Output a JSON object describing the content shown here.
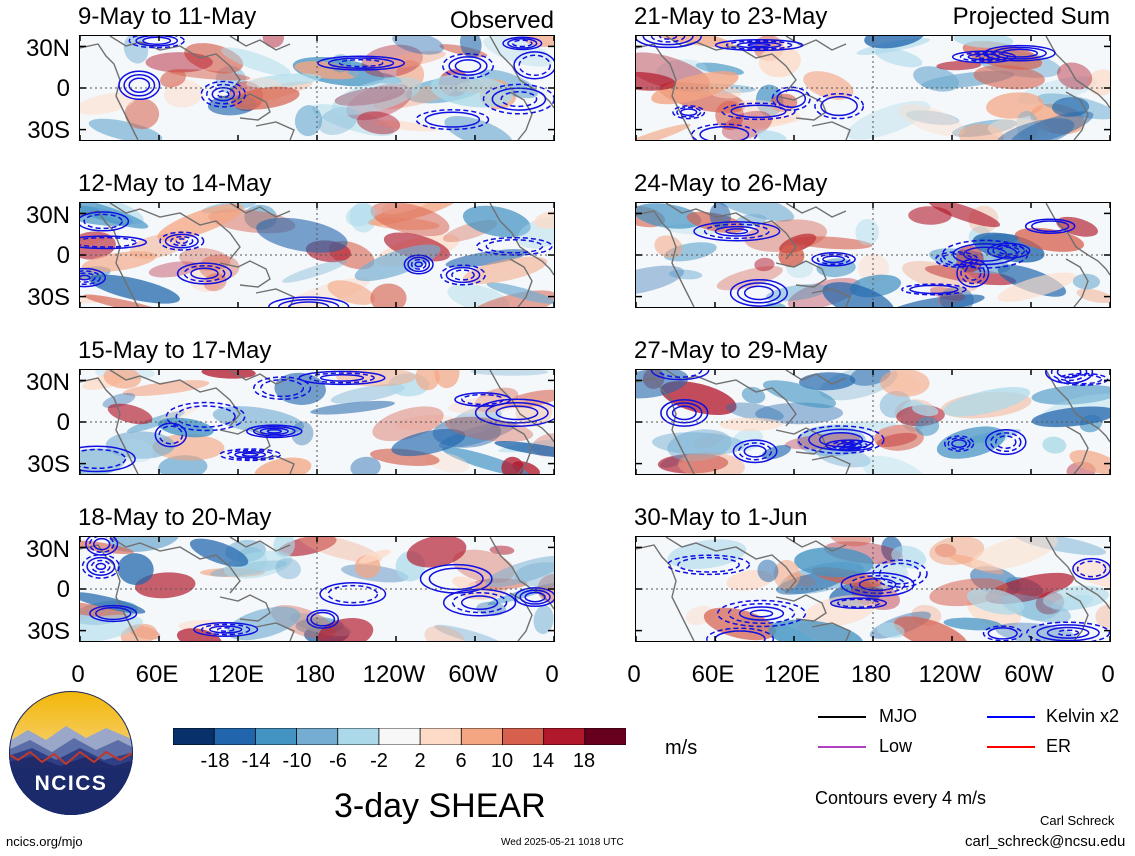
{
  "panels": {
    "observed_tag": "Observed",
    "projected_tag": "Projected Sum",
    "left": [
      {
        "title": "9-May to 11-May"
      },
      {
        "title": "12-May to 14-May"
      },
      {
        "title": "15-May to 17-May"
      },
      {
        "title": "18-May to 20-May"
      }
    ],
    "right": [
      {
        "title": "21-May to 23-May"
      },
      {
        "title": "24-May to 26-May"
      },
      {
        "title": "27-May to 29-May"
      },
      {
        "title": "30-May to 1-Jun"
      }
    ],
    "lat_labels": [
      "30N",
      "0",
      "30S"
    ],
    "lon_labels": [
      "0",
      "60E",
      "120E",
      "180",
      "120W",
      "60W",
      "0"
    ]
  },
  "colorbar": {
    "colors": [
      "#08306b",
      "#2166ac",
      "#4393c3",
      "#74add1",
      "#abd9e9",
      "#f7f7f7",
      "#fddbc7",
      "#f4a582",
      "#d6604d",
      "#b2182b",
      "#67001f"
    ],
    "labels": [
      "-18",
      "-14",
      "-10",
      "-6",
      "-2",
      "2",
      "6",
      "10",
      "14",
      "18"
    ],
    "unit": "m/s"
  },
  "legend": {
    "mjo": {
      "label": "MJO",
      "color": "#000000"
    },
    "kelvin": {
      "label": "Kelvin x2",
      "color": "#0000ff"
    },
    "low": {
      "label": "Low",
      "color": "#b040c0"
    },
    "er": {
      "label": "ER",
      "color": "#ff0000"
    },
    "contours_note": "Contours every 4 m/s"
  },
  "logo": {
    "text": "NCICS"
  },
  "title": "3-day SHEAR",
  "footer": {
    "site": "ncics.org/mjo",
    "timestamp": "Wed 2025-05-21 1018 UTC",
    "author": "Carl Schreck",
    "email": "carl_schreck@ncsu.edu"
  }
}
